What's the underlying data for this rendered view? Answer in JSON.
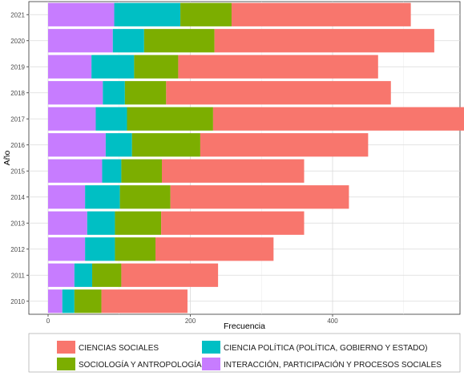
{
  "chart_data": {
    "type": "bar",
    "orientation": "horizontal",
    "stacked": true,
    "xlabel": "Frecuencia",
    "ylabel": "Año",
    "categories": [
      "2010",
      "2011",
      "2012",
      "2013",
      "2014",
      "2015",
      "2016",
      "2017",
      "2018",
      "2019",
      "2020",
      "2021"
    ],
    "x_ticks": [
      0,
      200,
      400
    ],
    "xlim": [
      0,
      550
    ],
    "grid": true,
    "legend_position": "bottom",
    "series": [
      {
        "name": "INTERACCIÓN, PARTICIPACIÓN Y PROCESOS SOCIALES",
        "color": "#C77CFF",
        "values": [
          20,
          37,
          52,
          55,
          52,
          76,
          81,
          67,
          77,
          61,
          91,
          93
        ]
      },
      {
        "name": "CIENCIA POLÍTICA (POLÍTICA, GOBIERNO Y ESTADO)",
        "color": "#00BFC4",
        "values": [
          17,
          25,
          42,
          39,
          49,
          27,
          37,
          44,
          31,
          60,
          44,
          93
        ]
      },
      {
        "name": "SOCIOLOGÍA Y ANTROPOLOGÍA",
        "color": "#7CAE00",
        "values": [
          38,
          41,
          57,
          65,
          71,
          57,
          96,
          121,
          58,
          62,
          99,
          72
        ]
      },
      {
        "name": "CIENCIAS SOCIALES",
        "color": "#F8766D",
        "values": [
          121,
          136,
          166,
          201,
          251,
          200,
          236,
          353,
          316,
          281,
          309,
          252
        ]
      }
    ],
    "legend_order": [
      "CIENCIAS SOCIALES",
      "CIENCIA POLÍTICA (POLÍTICA, GOBIERNO Y ESTADO)",
      "SOCIOLOGÍA Y ANTROPOLOGÍA",
      "INTERACCIÓN, PARTICIPACIÓN Y PROCESOS SOCIALES"
    ]
  }
}
